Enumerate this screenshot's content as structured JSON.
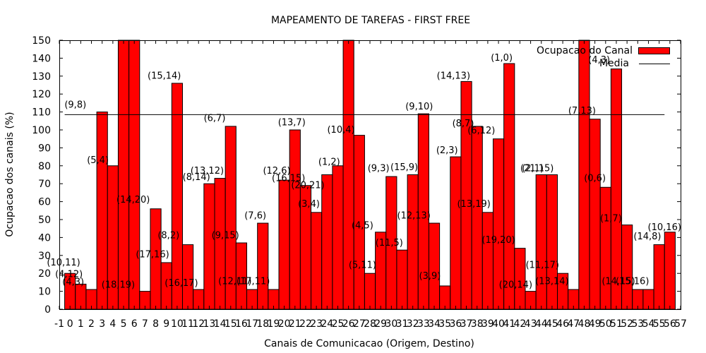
{
  "chart_data": {
    "type": "bar",
    "title": "MAPEAMENTO DE TAREFAS - FIRST FREE",
    "xlabel": "Canais de Comunicacao (Origem, Destino)",
    "ylabel": "Ocupacao dos canais (%)",
    "xlim": [
      -1,
      57
    ],
    "ylim": [
      0,
      150
    ],
    "x_ticks": [
      -1,
      0,
      1,
      2,
      3,
      4,
      5,
      6,
      7,
      8,
      9,
      10,
      11,
      12,
      13,
      14,
      15,
      16,
      17,
      18,
      19,
      20,
      21,
      22,
      23,
      24,
      25,
      26,
      27,
      28,
      29,
      30,
      31,
      32,
      33,
      34,
      35,
      36,
      37,
      38,
      39,
      40,
      41,
      42,
      43,
      44,
      45,
      46,
      47,
      48,
      49,
      50,
      51,
      52,
      53,
      54,
      55,
      56,
      57
    ],
    "y_ticks": [
      0,
      10,
      20,
      30,
      40,
      50,
      60,
      70,
      80,
      90,
      100,
      110,
      120,
      130,
      140,
      150
    ],
    "grid": false,
    "legend_position": "top-right",
    "series": [
      {
        "name": "Ocupacao do Canal",
        "color": "#ff0000",
        "x": [
          0,
          1,
          2,
          3,
          4,
          5,
          6,
          7,
          8,
          9,
          10,
          11,
          12,
          13,
          14,
          15,
          16,
          17,
          18,
          19,
          20,
          21,
          22,
          23,
          24,
          25,
          26,
          27,
          28,
          29,
          30,
          31,
          32,
          33,
          34,
          35,
          36,
          37,
          38,
          39,
          40,
          41,
          42,
          43,
          44,
          45,
          46,
          47,
          48,
          49,
          50,
          51,
          52,
          53,
          54,
          55,
          56
        ],
        "values": [
          20,
          14,
          11,
          110,
          80,
          150,
          150,
          10,
          56,
          26,
          126,
          36,
          11,
          70,
          73,
          102,
          37,
          11,
          48,
          11,
          72,
          100,
          69,
          54,
          75,
          80,
          150,
          97,
          20,
          43,
          74,
          33,
          75,
          109,
          48,
          13,
          85,
          127,
          102,
          54,
          95,
          137,
          34,
          10,
          75,
          75,
          20,
          11,
          150,
          106,
          68,
          134,
          47,
          11,
          11,
          36,
          43
        ]
      },
      {
        "name": "Media",
        "type": "hline",
        "color": "#000000",
        "value": 108.5
      }
    ],
    "annotations": [
      {
        "text": "(10,11)",
        "x": -0.6,
        "y": 24.5
      },
      {
        "text": "(4,12)",
        "x": -0.1,
        "y": 18
      },
      {
        "text": "(4,3)",
        "x": 0.3,
        "y": 13.5
      },
      {
        "text": "(9,8)",
        "x": 0.5,
        "y": 112.5
      },
      {
        "text": "(5,4)",
        "x": 2.6,
        "y": 81.5
      },
      {
        "text": "(18,19)",
        "x": 4.5,
        "y": 12
      },
      {
        "text": "(14,20)",
        "x": 5.9,
        "y": 59.5
      },
      {
        "text": "(15,14)",
        "x": 8.8,
        "y": 128.5
      },
      {
        "text": "(17,16)",
        "x": 7.7,
        "y": 29
      },
      {
        "text": "(8,2)",
        "x": 9.2,
        "y": 39.5
      },
      {
        "text": "(16,17)",
        "x": 10.4,
        "y": 13
      },
      {
        "text": "(8,14)",
        "x": 11.8,
        "y": 72
      },
      {
        "text": "(13,12)",
        "x": 12.8,
        "y": 75.5
      },
      {
        "text": "(6,7)",
        "x": 13.5,
        "y": 105
      },
      {
        "text": "(9,15)",
        "x": 14.5,
        "y": 39.5
      },
      {
        "text": "(12,11)",
        "x": 15.4,
        "y": 14
      },
      {
        "text": "(7,6)",
        "x": 17.3,
        "y": 50.5
      },
      {
        "text": "(17,11)",
        "x": 17.1,
        "y": 14
      },
      {
        "text": "(12,6)",
        "x": 19.3,
        "y": 75.5
      },
      {
        "text": "(16,15)",
        "x": 20.4,
        "y": 71.5
      },
      {
        "text": "(13,7)",
        "x": 20.7,
        "y": 102.5
      },
      {
        "text": "(20,21)",
        "x": 22.2,
        "y": 67.5
      },
      {
        "text": "(3,4)",
        "x": 22.3,
        "y": 57
      },
      {
        "text": "(1,2)",
        "x": 24.2,
        "y": 80.5
      },
      {
        "text": "(10,4)",
        "x": 25.3,
        "y": 98.5
      },
      {
        "text": "(4,5)",
        "x": 27.3,
        "y": 45
      },
      {
        "text": "(5,11)",
        "x": 27.3,
        "y": 23
      },
      {
        "text": "(9,3)",
        "x": 28.8,
        "y": 77
      },
      {
        "text": "(11,5)",
        "x": 29.8,
        "y": 35.5
      },
      {
        "text": "(15,9)",
        "x": 31.2,
        "y": 77.5
      },
      {
        "text": "(12,13)",
        "x": 32.1,
        "y": 50.5
      },
      {
        "text": "(9,10)",
        "x": 32.6,
        "y": 111.5
      },
      {
        "text": "(3,9)",
        "x": 33.6,
        "y": 17
      },
      {
        "text": "(2,3)",
        "x": 35.2,
        "y": 87
      },
      {
        "text": "(14,13)",
        "x": 35.8,
        "y": 128.5
      },
      {
        "text": "(8,7)",
        "x": 36.7,
        "y": 102
      },
      {
        "text": "(13,19)",
        "x": 37.7,
        "y": 57
      },
      {
        "text": "(6,12)",
        "x": 38.4,
        "y": 98
      },
      {
        "text": "(1,0)",
        "x": 40.3,
        "y": 138.5
      },
      {
        "text": "(19,20)",
        "x": 40.0,
        "y": 37
      },
      {
        "text": "(20,14)",
        "x": 41.6,
        "y": 12
      },
      {
        "text": "(21,15)",
        "x": 43.6,
        "y": 77
      },
      {
        "text": "(2,1)",
        "x": 43.2,
        "y": 77
      },
      {
        "text": "(11,17)",
        "x": 44.1,
        "y": 23
      },
      {
        "text": "(13,14)",
        "x": 45.0,
        "y": 14
      },
      {
        "text": "(7,13)",
        "x": 47.8,
        "y": 109
      },
      {
        "text": "(4,3)",
        "x": 49.4,
        "y": 137.5
      },
      {
        "text": "(0,6)",
        "x": 49.0,
        "y": 71.5
      },
      {
        "text": "(1,7)",
        "x": 50.5,
        "y": 49
      },
      {
        "text": "(14,15)",
        "x": 51.2,
        "y": 14
      },
      {
        "text": "(15,16)",
        "x": 52.5,
        "y": 14
      },
      {
        "text": "(14,8)",
        "x": 53.9,
        "y": 39
      },
      {
        "text": "(10,16)",
        "x": 55.5,
        "y": 44
      }
    ]
  }
}
